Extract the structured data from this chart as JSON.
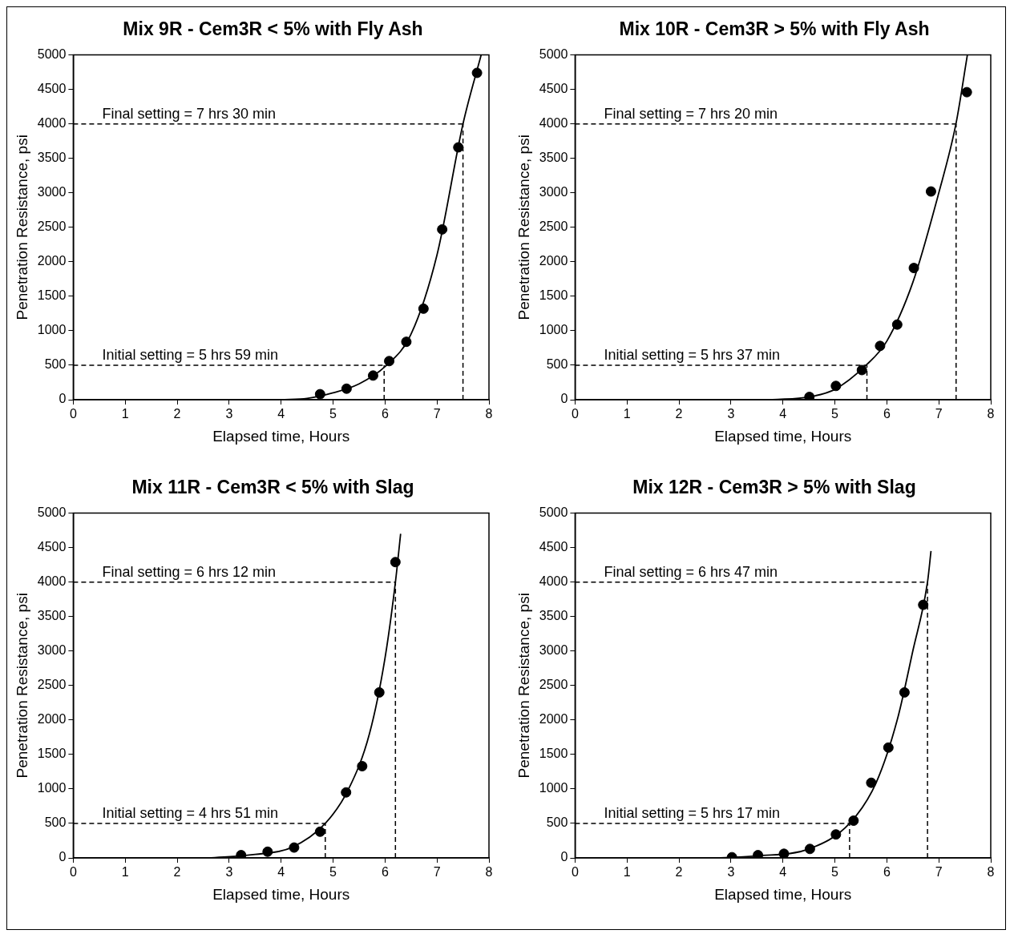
{
  "chart_data": [
    {
      "type": "scatter",
      "title": "Mix 9R - Cem3R < 5% with Fly Ash",
      "xlabel": "Elapsed time, Hours",
      "ylabel": "Penetration Resistance, psi",
      "xlim": [
        0,
        8
      ],
      "xticks": [
        0,
        1,
        2,
        3,
        4,
        5,
        6,
        7,
        8
      ],
      "ylim": [
        0,
        5000
      ],
      "yticks": [
        0,
        500,
        1000,
        1500,
        2000,
        2500,
        3000,
        3500,
        4000,
        4500,
        5000
      ],
      "grid": false,
      "series": [
        {
          "type": "scatter",
          "marker": "circle",
          "color": "#000000",
          "x": [
            4.75,
            5.26,
            5.77,
            6.08,
            6.41,
            6.74,
            7.1,
            7.41,
            7.77
          ],
          "values": [
            80,
            160,
            350,
            560,
            840,
            1320,
            2470,
            3660,
            4740
          ]
        },
        {
          "type": "line",
          "marker": "none",
          "color": "#000000",
          "x": [
            4.0,
            4.5,
            5.0,
            5.5,
            6.0,
            6.5,
            7.0,
            7.5,
            7.85
          ],
          "values": [
            0,
            20,
            100,
            230,
            480,
            950,
            2100,
            4000,
            5000
          ]
        }
      ],
      "ref_lines": [
        {
          "axis": "y",
          "value": 500,
          "line_style": "dashed",
          "color": "#000000"
        },
        {
          "axis": "x",
          "value": 5.983,
          "line_style": "dashed",
          "color": "#000000"
        },
        {
          "axis": "y",
          "value": 4000,
          "line_style": "dashed",
          "color": "#000000"
        },
        {
          "axis": "x",
          "value": 7.5,
          "line_style": "dashed",
          "color": "#000000"
        }
      ],
      "annotations": [
        "Initial setting = 5 hrs 59 min",
        "Final setting = 7 hrs 30 min"
      ]
    },
    {
      "type": "scatter",
      "title": "Mix 10R - Cem3R > 5% with Fly Ash",
      "xlabel": "Elapsed time, Hours",
      "ylabel": "Penetration Resistance, psi",
      "xlim": [
        0,
        8
      ],
      "xticks": [
        0,
        1,
        2,
        3,
        4,
        5,
        6,
        7,
        8
      ],
      "ylim": [
        0,
        5000
      ],
      "yticks": [
        0,
        500,
        1000,
        1500,
        2000,
        2500,
        3000,
        3500,
        4000,
        4500,
        5000
      ],
      "grid": false,
      "series": [
        {
          "type": "scatter",
          "marker": "circle",
          "color": "#000000",
          "x": [
            4.51,
            5.02,
            5.52,
            5.87,
            6.2,
            6.52,
            6.85,
            7.54
          ],
          "values": [
            40,
            200,
            430,
            780,
            1090,
            1910,
            3020,
            4460
          ]
        },
        {
          "type": "line",
          "marker": "none",
          "color": "#000000",
          "x": [
            3.8,
            4.5,
            5.0,
            5.6,
            6.0,
            6.5,
            7.0,
            7.33,
            7.55
          ],
          "values": [
            0,
            40,
            150,
            500,
            850,
            1700,
            3000,
            4000,
            5000
          ]
        }
      ],
      "ref_lines": [
        {
          "axis": "y",
          "value": 500,
          "line_style": "dashed",
          "color": "#000000"
        },
        {
          "axis": "x",
          "value": 5.617,
          "line_style": "dashed",
          "color": "#000000"
        },
        {
          "axis": "y",
          "value": 4000,
          "line_style": "dashed",
          "color": "#000000"
        },
        {
          "axis": "x",
          "value": 7.333,
          "line_style": "dashed",
          "color": "#000000"
        }
      ],
      "annotations": [
        "Initial setting = 5 hrs 37 min",
        "Final setting = 7 hrs 20 min"
      ]
    },
    {
      "type": "scatter",
      "title": "Mix 11R - Cem3R < 5% with Slag",
      "xlabel": "Elapsed time, Hours",
      "ylabel": "Penetration Resistance, psi",
      "xlim": [
        0,
        8
      ],
      "xticks": [
        0,
        1,
        2,
        3,
        4,
        5,
        6,
        7,
        8
      ],
      "ylim": [
        0,
        5000
      ],
      "yticks": [
        0,
        500,
        1000,
        1500,
        2000,
        2500,
        3000,
        3500,
        4000,
        4500,
        5000
      ],
      "grid": false,
      "series": [
        {
          "type": "scatter",
          "marker": "circle",
          "color": "#000000",
          "x": [
            3.23,
            3.74,
            4.25,
            4.75,
            5.25,
            5.56,
            5.89,
            6.2
          ],
          "values": [
            40,
            90,
            150,
            380,
            950,
            1330,
            2400,
            4290
          ]
        },
        {
          "type": "line",
          "marker": "none",
          "color": "#000000",
          "x": [
            2.6,
            3.5,
            4.2,
            4.85,
            5.3,
            5.7,
            6.0,
            6.2,
            6.3
          ],
          "values": [
            0,
            50,
            150,
            500,
            1000,
            1800,
            2900,
            4000,
            4700
          ]
        }
      ],
      "ref_lines": [
        {
          "axis": "y",
          "value": 500,
          "line_style": "dashed",
          "color": "#000000"
        },
        {
          "axis": "x",
          "value": 4.85,
          "line_style": "dashed",
          "color": "#000000"
        },
        {
          "axis": "y",
          "value": 4000,
          "line_style": "dashed",
          "color": "#000000"
        },
        {
          "axis": "x",
          "value": 6.2,
          "line_style": "dashed",
          "color": "#000000"
        }
      ],
      "annotations": [
        "Initial setting = 4 hrs 51 min",
        "Final setting = 6 hrs 12 min"
      ]
    },
    {
      "type": "scatter",
      "title": "Mix 12R - Cem3R > 5% with Slag",
      "xlabel": "Elapsed time, Hours",
      "ylabel": "Penetration Resistance, psi",
      "xlim": [
        0,
        8
      ],
      "xticks": [
        0,
        1,
        2,
        3,
        4,
        5,
        6,
        7,
        8
      ],
      "ylim": [
        0,
        5000
      ],
      "yticks": [
        0,
        500,
        1000,
        1500,
        2000,
        2500,
        3000,
        3500,
        4000,
        4500,
        5000
      ],
      "grid": false,
      "series": [
        {
          "type": "scatter",
          "marker": "circle",
          "color": "#000000",
          "x": [
            3.02,
            3.52,
            4.02,
            4.52,
            5.02,
            5.36,
            5.7,
            6.03,
            6.34,
            6.7
          ],
          "values": [
            10,
            40,
            60,
            130,
            340,
            540,
            1090,
            1600,
            2400,
            3670
          ]
        },
        {
          "type": "line",
          "marker": "none",
          "color": "#000000",
          "x": [
            2.8,
            3.5,
            4.5,
            5.283,
            5.8,
            6.2,
            6.5,
            6.783,
            6.85
          ],
          "values": [
            0,
            30,
            130,
            500,
            1100,
            2000,
            3000,
            4000,
            4450
          ]
        }
      ],
      "ref_lines": [
        {
          "axis": "y",
          "value": 500,
          "line_style": "dashed",
          "color": "#000000"
        },
        {
          "axis": "x",
          "value": 5.283,
          "line_style": "dashed",
          "color": "#000000"
        },
        {
          "axis": "y",
          "value": 4000,
          "line_style": "dashed",
          "color": "#000000"
        },
        {
          "axis": "x",
          "value": 6.783,
          "line_style": "dashed",
          "color": "#000000"
        }
      ],
      "annotations": [
        "Initial setting = 5 hrs 17 min",
        "Final setting = 6 hrs 47 min"
      ]
    }
  ]
}
